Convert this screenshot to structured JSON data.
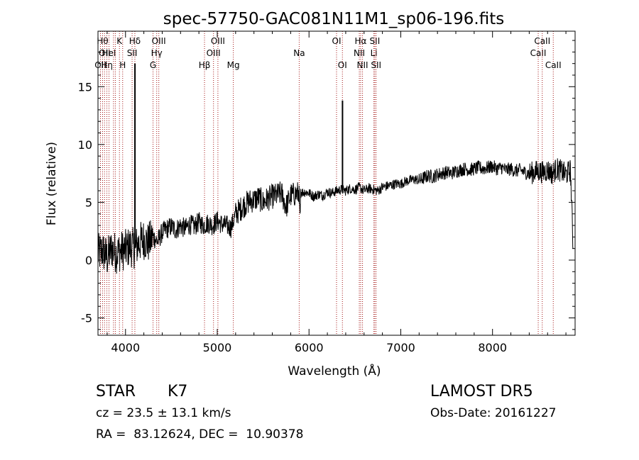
{
  "chart_data": {
    "type": "line",
    "title": "spec-57750-GAC081N11M1_sp06-196.fits",
    "xlabel": "Wavelength (Å)",
    "ylabel": "Flux (relative)",
    "xlim": [
      3700,
      8900
    ],
    "ylim": [
      -6.5,
      19.8
    ],
    "xticks": [
      4000,
      5000,
      6000,
      7000,
      8000
    ],
    "yticks": [
      -5,
      0,
      5,
      10,
      15
    ],
    "grid": false,
    "series": [
      {
        "color": "#000000",
        "x": [
          3700,
          3750,
          3800,
          3850,
          3900,
          3950,
          4000,
          4050,
          4100,
          4150,
          4200,
          4250,
          4300,
          4350,
          4400,
          4450,
          4500,
          4550,
          4600,
          4650,
          4700,
          4750,
          4800,
          4850,
          4900,
          4950,
          5000,
          5050,
          5100,
          5150,
          5200,
          5250,
          5300,
          5350,
          5400,
          5450,
          5500,
          5550,
          5600,
          5650,
          5700,
          5750,
          5800,
          5850,
          5900,
          5950,
          6000,
          6050,
          6100,
          6150,
          6200,
          6250,
          6300,
          6350,
          6400,
          6450,
          6500,
          6550,
          6600,
          6650,
          6700,
          6750,
          6800,
          6850,
          6900,
          6950,
          7000,
          7050,
          7100,
          7150,
          7200,
          7250,
          7300,
          7350,
          7400,
          7450,
          7500,
          7550,
          7600,
          7650,
          7700,
          7750,
          7800,
          7850,
          7900,
          7950,
          8000,
          8050,
          8100,
          8150,
          8200,
          8250,
          8300,
          8350,
          8400,
          8450,
          8500,
          8550,
          8600,
          8650,
          8700,
          8750,
          8800,
          8850,
          8880
        ],
        "y": [
          0.5,
          0.8,
          0.2,
          1.0,
          0.6,
          0.8,
          0.9,
          1.2,
          1.0,
          1.5,
          1.8,
          1.5,
          2.0,
          1.6,
          2.4,
          2.7,
          2.9,
          2.6,
          3.0,
          2.7,
          3.1,
          2.9,
          3.3,
          3.0,
          3.2,
          3.0,
          3.4,
          3.1,
          3.0,
          2.8,
          4.0,
          4.4,
          4.8,
          5.1,
          5.2,
          5.4,
          5.0,
          5.3,
          5.5,
          5.6,
          5.8,
          4.6,
          5.6,
          5.7,
          5.8,
          5.9,
          5.8,
          5.5,
          5.7,
          5.6,
          5.9,
          5.8,
          6.0,
          6.1,
          6.0,
          6.2,
          6.1,
          6.3,
          6.0,
          6.2,
          6.1,
          6.0,
          6.3,
          6.4,
          6.5,
          6.6,
          6.6,
          6.8,
          6.9,
          7.0,
          6.9,
          7.1,
          7.3,
          7.2,
          7.4,
          7.5,
          7.6,
          7.5,
          7.7,
          7.8,
          7.9,
          7.8,
          7.9,
          8.0,
          7.9,
          8.0,
          8.1,
          7.9,
          8.0,
          7.8,
          7.9,
          7.7,
          7.8,
          7.6,
          7.5,
          7.6,
          7.7,
          7.6,
          7.8,
          7.5,
          7.9,
          7.7,
          7.4,
          7.8,
          0.5
        ]
      }
    ],
    "spikes": [
      {
        "x": 4103,
        "y": 17.0
      },
      {
        "x": 6365,
        "y": 13.8
      }
    ],
    "lines": [
      {
        "x": 3727,
        "label": "OII",
        "row": 2
      },
      {
        "x": 3750,
        "label": "Hθ",
        "row": 0
      },
      {
        "x": 3772,
        "label": "OII",
        "row": 1
      },
      {
        "x": 3797,
        "label": "Hη",
        "row": 2
      },
      {
        "x": 3820,
        "label": "HeI",
        "row": 1
      },
      {
        "x": 3869,
        "label": "",
        "row": 0
      },
      {
        "x": 3889,
        "label": "",
        "row": 0
      },
      {
        "x": 3934,
        "label": "K",
        "row": 0
      },
      {
        "x": 3969,
        "label": "H",
        "row": 2
      },
      {
        "x": 4072,
        "label": "SII",
        "row": 1
      },
      {
        "x": 4102,
        "label": "Hδ",
        "row": 0
      },
      {
        "x": 4300,
        "label": "G",
        "row": 2
      },
      {
        "x": 4340,
        "label": "Hγ",
        "row": 1
      },
      {
        "x": 4363,
        "label": "OIII",
        "row": 0
      },
      {
        "x": 4861,
        "label": "Hβ",
        "row": 2
      },
      {
        "x": 4959,
        "label": "OIII",
        "row": 1
      },
      {
        "x": 5007,
        "label": "OIII",
        "row": 0
      },
      {
        "x": 5175,
        "label": "Mg",
        "row": 2
      },
      {
        "x": 5893,
        "label": "Na",
        "row": 1
      },
      {
        "x": 6300,
        "label": "OI",
        "row": 0
      },
      {
        "x": 6364,
        "label": "OI",
        "row": 2
      },
      {
        "x": 6548,
        "label": "NII",
        "row": 1
      },
      {
        "x": 6563,
        "label": "Hα",
        "row": 0
      },
      {
        "x": 6583,
        "label": "NII",
        "row": 2
      },
      {
        "x": 6707,
        "label": "Li",
        "row": 1
      },
      {
        "x": 6717,
        "label": "SII",
        "row": 0
      },
      {
        "x": 6731,
        "label": "SII",
        "row": 2
      },
      {
        "x": 8498,
        "label": "CaII",
        "row": 1
      },
      {
        "x": 8542,
        "label": "CaII",
        "row": 0
      },
      {
        "x": 8662,
        "label": "CaII",
        "row": 2
      }
    ]
  },
  "info": {
    "class": "STAR",
    "subclass": "K7",
    "survey": "LAMOST DR5",
    "cz": "cz = 23.5 ± 13.1 km/s",
    "obs_date": "Obs-Date: 20161227",
    "coords": "RA =  83.12624, DEC =  10.90378"
  }
}
